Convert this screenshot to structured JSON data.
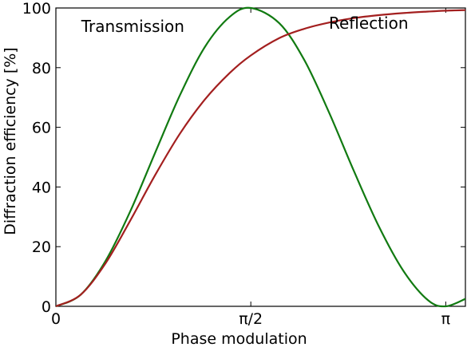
{
  "chart_data": {
    "type": "line",
    "title": "",
    "xlabel": "Phase modulation",
    "ylabel": "Diffraction efficiency [%]",
    "xlim": [
      0,
      3.3
    ],
    "ylim": [
      0,
      100
    ],
    "x_ticks": [
      {
        "value": 0,
        "label": "0"
      },
      {
        "value": 1.5708,
        "label": "π/2"
      },
      {
        "value": 3.1416,
        "label": "π"
      }
    ],
    "y_ticks": [
      {
        "value": 0,
        "label": "0"
      },
      {
        "value": 20,
        "label": "20"
      },
      {
        "value": 40,
        "label": "40"
      },
      {
        "value": 60,
        "label": "60"
      },
      {
        "value": 80,
        "label": "80"
      },
      {
        "value": 100,
        "label": "100"
      }
    ],
    "grid": false,
    "legend": "none",
    "annotations": [
      {
        "text": "Transmission",
        "x": 0.62,
        "y": 92
      },
      {
        "text": "Reflection",
        "x": 2.52,
        "y": 93
      }
    ],
    "x": [
      0,
      0.2,
      0.4,
      0.6,
      0.8,
      1.0,
      1.2,
      1.4,
      1.5708,
      1.8,
      2.0,
      2.2,
      2.4,
      2.6,
      2.8,
      3.0,
      3.1416,
      3.3
    ],
    "series": [
      {
        "name": "Transmission",
        "color": "#117a11",
        "values": [
          0,
          3.9,
          15.2,
          31.9,
          51.5,
          70.8,
          86.9,
          97.0,
          100,
          94.9,
          82.7,
          65.1,
          45.5,
          27.0,
          11.9,
          2.0,
          0,
          2.5
        ]
      },
      {
        "name": "Reflection",
        "color": "#a31f1f",
        "values": [
          0,
          3.9,
          14.4,
          28.8,
          44.0,
          57.9,
          69.3,
          78.2,
          84.1,
          89.9,
          93.0,
          95.1,
          96.6,
          97.6,
          98.3,
          98.8,
          99.1,
          99.3
        ]
      }
    ]
  }
}
